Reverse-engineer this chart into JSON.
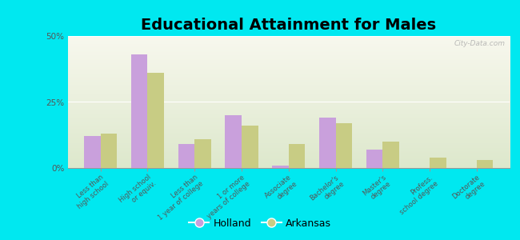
{
  "title": "Educational Attainment for Males",
  "categories": [
    "Less than\nhigh school",
    "High school\nor equiv.",
    "Less than\n1 year of college",
    "1 or more\nyears of college",
    "Associate\ndegree",
    "Bachelor's\ndegree",
    "Master's\ndegree",
    "Profess.\nschool degree",
    "Doctorate\ndegree"
  ],
  "holland": [
    12.0,
    43.0,
    9.0,
    20.0,
    1.0,
    19.0,
    7.0,
    0.0,
    0.0
  ],
  "arkansas": [
    13.0,
    36.0,
    11.0,
    16.0,
    9.0,
    17.0,
    10.0,
    4.0,
    3.0
  ],
  "holland_color": "#c9a0dc",
  "arkansas_color": "#c8cc84",
  "background_outer": "#00e8f0",
  "background_inner": "#eef2e0",
  "title_fontsize": 14,
  "tick_fontsize": 6.0,
  "legend_fontsize": 9,
  "ylim": [
    0,
    50
  ],
  "yticks": [
    0,
    25,
    50
  ],
  "ytick_labels": [
    "0%",
    "25%",
    "50%"
  ],
  "bar_width": 0.35,
  "watermark": "City-Data.com"
}
